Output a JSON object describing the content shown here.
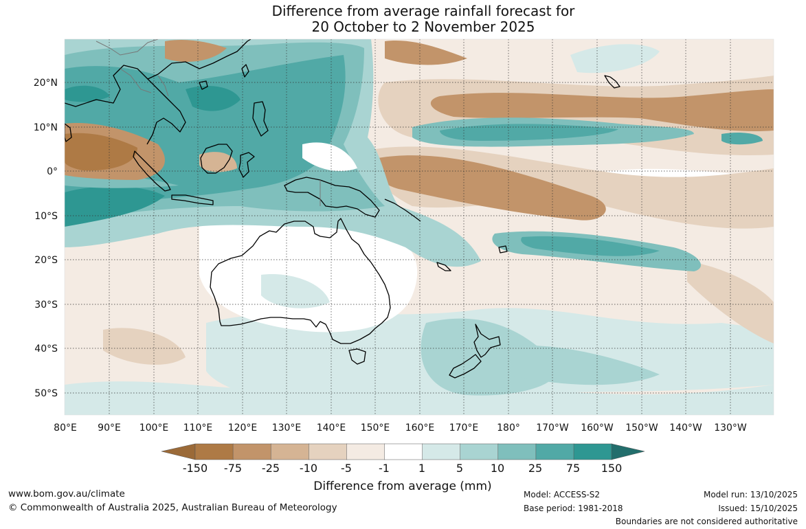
{
  "title": {
    "line1": "Difference from average rainfall forecast for",
    "line2": "20 October to 2 November 2025"
  },
  "map": {
    "lat_labels": [
      "20°N",
      "10°N",
      "0°",
      "10°S",
      "20°S",
      "30°S",
      "40°S",
      "50°S"
    ],
    "lon_labels": [
      "80°E",
      "90°E",
      "100°E",
      "110°E",
      "120°E",
      "130°E",
      "140°E",
      "150°E",
      "160°E",
      "170°E",
      "180°",
      "170°W",
      "160°W",
      "150°W",
      "140°W",
      "130°W"
    ]
  },
  "colorbar": {
    "ticks": [
      "-150",
      "-75",
      "-25",
      "-10",
      "-5",
      "-1",
      "1",
      "5",
      "10",
      "25",
      "75",
      "150"
    ],
    "colors": [
      "#9b6a38",
      "#ae7a45",
      "#c2946a",
      "#d5b494",
      "#e5d2bf",
      "#f4ebe3",
      "#ffffff",
      "#d5e9e8",
      "#a9d4d2",
      "#7fbfbc",
      "#51a9a6",
      "#2e9792",
      "#226e6c"
    ],
    "label": "Difference from average (mm)"
  },
  "footer": {
    "website": "www.bom.gov.au/climate",
    "copyright": "© Commonwealth of Australia 2025, Australian Bureau of Meteorology",
    "model": "Model: ACCESS-S2",
    "base_period": "Base period: 1981-2018",
    "model_run": "Model run: 13/10/2025",
    "issued": "Issued: 15/10/2025",
    "disclaimer": "Boundaries are not considered authoritative"
  }
}
